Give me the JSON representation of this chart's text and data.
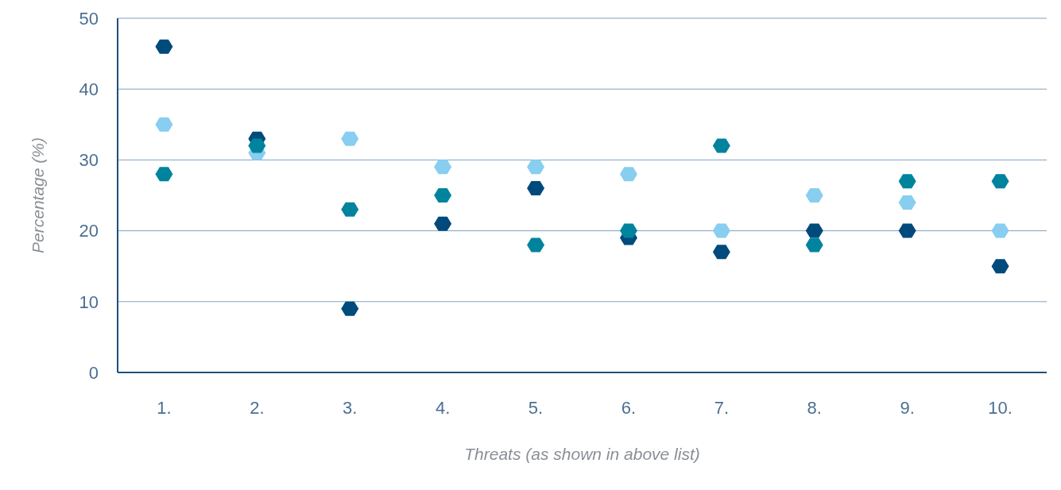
{
  "chart_data": {
    "type": "scatter",
    "xlabel": "Threats (as shown in above list)",
    "ylabel": "Percentage (%)",
    "categories": [
      "1.",
      "2.",
      "3.",
      "4.",
      "5.",
      "6.",
      "7.",
      "8.",
      "9.",
      "10."
    ],
    "series": [
      {
        "color": "#004a7c",
        "values": [
          46,
          33,
          9,
          21,
          26,
          19,
          17,
          20,
          20,
          15
        ]
      },
      {
        "color": "#87cef0",
        "values": [
          35,
          31,
          33,
          29,
          29,
          28,
          20,
          25,
          24,
          20
        ]
      },
      {
        "color": "#00849e",
        "values": [
          28,
          32,
          23,
          25,
          18,
          20,
          32,
          18,
          27,
          27
        ]
      }
    ],
    "ylim": [
      0,
      50
    ],
    "yticks": [
      0,
      10,
      20,
      30,
      40,
      50
    ],
    "grid": "y",
    "legend": false
  }
}
